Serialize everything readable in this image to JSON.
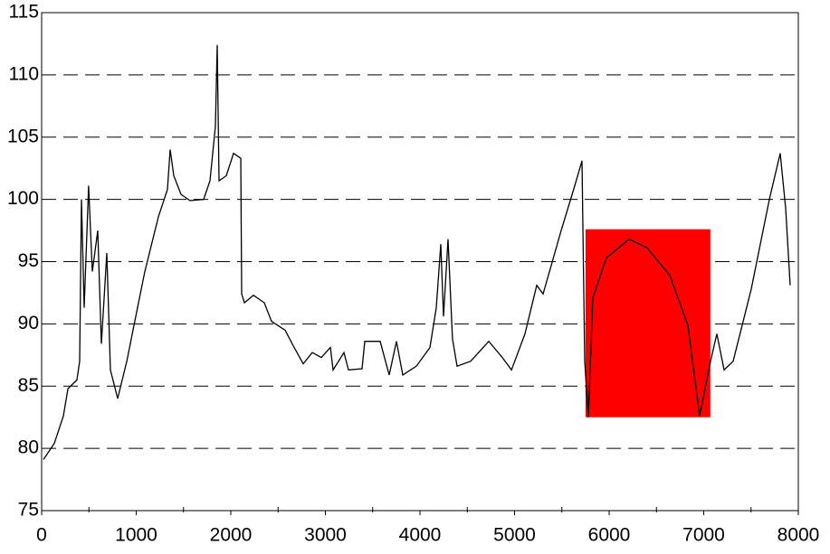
{
  "chart_data": {
    "type": "line",
    "x": [
      19,
      134,
      230,
      278,
      373,
      402,
      421,
      450,
      497,
      536,
      593,
      632,
      689,
      727,
      804,
      900,
      995,
      1091,
      1234,
      1330,
      1359,
      1397,
      1474,
      1569,
      1713,
      1780,
      1837,
      1856,
      1876,
      1952,
      2029,
      2105,
      2115,
      2144,
      2239,
      2354,
      2431,
      2574,
      2670,
      2766,
      2861,
      2957,
      3053,
      3081,
      3196,
      3244,
      3388,
      3416,
      3579,
      3675,
      3751,
      3818,
      3962,
      4105,
      4172,
      4220,
      4249,
      4297,
      4344,
      4392,
      4536,
      4727,
      4871,
      4967,
      5110,
      5234,
      5301,
      5493,
      5636,
      5713,
      5742,
      5780,
      5828,
      5971,
      6211,
      6402,
      6641,
      6833,
      6957,
      7072,
      7139,
      7215,
      7311,
      7502,
      7694,
      7809,
      7866,
      7914
    ],
    "values": [
      79.1,
      80.4,
      82.6,
      84.8,
      85.5,
      87,
      100,
      91.3,
      101.1,
      94.2,
      97.5,
      88.4,
      95.7,
      86.3,
      84,
      87,
      90.6,
      94.2,
      98.6,
      100.8,
      104,
      101.9,
      100.4,
      99.9,
      100,
      101.5,
      105.9,
      112.4,
      101.5,
      101.9,
      103.7,
      103.3,
      92.4,
      91.7,
      92.3,
      91.7,
      90.2,
      89.5,
      88.1,
      86.8,
      87.7,
      87.3,
      88.1,
      86.3,
      87.7,
      86.3,
      86.4,
      88.6,
      88.6,
      85.9,
      88.6,
      85.9,
      86.6,
      88.1,
      91.3,
      96.4,
      90.6,
      96.8,
      88.8,
      86.6,
      87,
      88.6,
      87.3,
      86.3,
      89.2,
      93.1,
      92.4,
      97.5,
      101.1,
      103.1,
      87,
      82.5,
      92.1,
      95.3,
      96.8,
      96.1,
      93.9,
      89.9,
      82.6,
      87,
      89.2,
      86.3,
      87,
      92.8,
      100,
      103.7,
      99.3,
      93.1
    ],
    "color": "#000000",
    "xlim": [
      0,
      8000
    ],
    "xticks": [
      0,
      1000,
      2000,
      3000,
      4000,
      5000,
      6000,
      7000,
      8000
    ],
    "xminorticks": [
      500,
      1500,
      2500,
      3500,
      4500,
      5500,
      6500,
      7500
    ],
    "ylim": [
      75,
      115
    ],
    "yticks": [
      75,
      80,
      85,
      90,
      95,
      100,
      105,
      110,
      115
    ],
    "grid": true,
    "highlight": {
      "x": [
        5750,
        7070
      ],
      "y": [
        82.5,
        97.6
      ],
      "color": "#ff0000"
    }
  }
}
